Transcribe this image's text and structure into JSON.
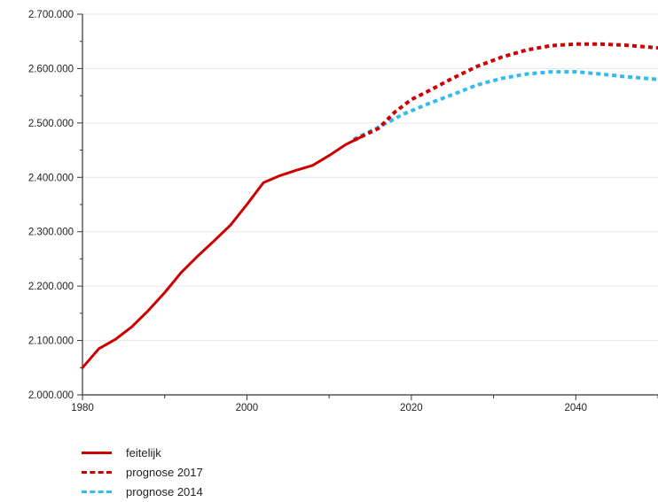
{
  "chart_data": {
    "type": "line",
    "title": "",
    "xlabel": "",
    "ylabel": "",
    "xlim": [
      1980,
      2050
    ],
    "ylim": [
      2000000,
      2700000
    ],
    "x_ticks": [
      1980,
      2000,
      2020,
      2040
    ],
    "x_tick_labels": [
      "1980",
      "2000",
      "2020",
      "2040"
    ],
    "y_ticks": [
      2000000,
      2100000,
      2200000,
      2300000,
      2400000,
      2500000,
      2600000,
      2700000
    ],
    "y_tick_labels": [
      "2.000.000",
      "2.100.000",
      "2.200.000",
      "2.300.000",
      "2.400.000",
      "2.500.000",
      "2.600.000",
      "2.700.000"
    ],
    "grid": "horizontal",
    "legend_position": "bottom-left",
    "series": [
      {
        "name": "feitelijk",
        "style": "solid",
        "color": "#cc0000",
        "x": [
          1980,
          1982,
          1984,
          1986,
          1988,
          1990,
          1992,
          1994,
          1996,
          1998,
          2000,
          2002,
          2004,
          2006,
          2008,
          2010,
          2012,
          2014
        ],
        "y": [
          2050000,
          2085000,
          2102000,
          2125000,
          2155000,
          2188000,
          2225000,
          2255000,
          2283000,
          2312000,
          2350000,
          2390000,
          2403000,
          2413000,
          2422000,
          2440000,
          2460000,
          2475000
        ]
      },
      {
        "name": "prognose 2017",
        "style": "dashed",
        "color": "#cc0000",
        "x": [
          2013,
          2016,
          2018,
          2020,
          2022,
          2025,
          2028,
          2031,
          2034,
          2037,
          2040,
          2043,
          2046,
          2050
        ],
        "y": [
          2468000,
          2490000,
          2520000,
          2543000,
          2558000,
          2582000,
          2604000,
          2621000,
          2634000,
          2642000,
          2645000,
          2645000,
          2643000,
          2638000
        ]
      },
      {
        "name": "prognose 2014",
        "style": "dashed",
        "color": "#33bbee",
        "x": [
          2013,
          2016,
          2019,
          2022,
          2025,
          2028,
          2031,
          2034,
          2037,
          2040,
          2043,
          2046,
          2050
        ],
        "y": [
          2470000,
          2492000,
          2516000,
          2535000,
          2552000,
          2570000,
          2582000,
          2590000,
          2594000,
          2594000,
          2590000,
          2585000,
          2580000
        ]
      }
    ]
  }
}
